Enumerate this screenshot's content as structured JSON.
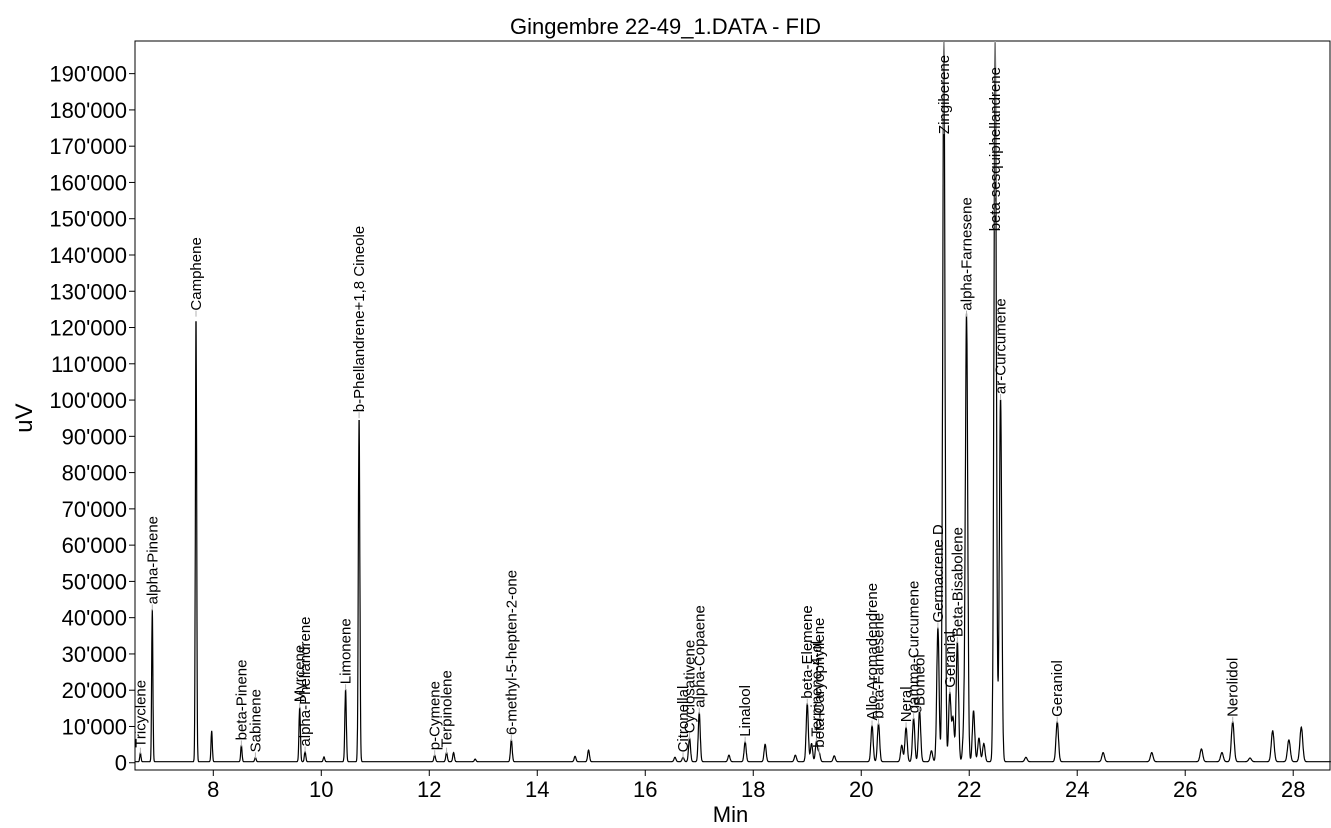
{
  "chart_data": {
    "type": "line",
    "title": "Gingembre 22-49_1.DATA - FID",
    "xlabel": "Min",
    "ylabel": "uV",
    "xlim": [
      6.55,
      28.7
    ],
    "ylim": [
      -2000,
      199000
    ],
    "x_ticks": [
      8,
      10,
      12,
      14,
      16,
      18,
      20,
      22,
      24,
      26,
      28
    ],
    "x_tick_labels": [
      "8",
      "10",
      "12",
      "14",
      "16",
      "18",
      "20",
      "22",
      "24",
      "26",
      "28"
    ],
    "y_ticks": [
      0,
      10000,
      20000,
      30000,
      40000,
      50000,
      60000,
      70000,
      80000,
      90000,
      100000,
      110000,
      120000,
      130000,
      140000,
      150000,
      160000,
      170000,
      180000,
      190000
    ],
    "y_tick_labels": [
      "0",
      "10'000",
      "20'000",
      "30'000",
      "40'000",
      "50'000",
      "60'000",
      "70'000",
      "80'000",
      "90'000",
      "100'000",
      "110'000",
      "120'000",
      "130'000",
      "140'000",
      "150'000",
      "160'000",
      "170'000",
      "180'000",
      "190'000"
    ],
    "grid": false,
    "line_color": "#000000",
    "label_leader_color": "#b0b0b0",
    "peaks": [
      {
        "x": 6.65,
        "y": 2500,
        "name": "Tricyclene"
      },
      {
        "x": 6.87,
        "y": 42000,
        "name": "alpha-Pinene"
      },
      {
        "x": 7.68,
        "y": 123000,
        "name": "Camphene"
      },
      {
        "x": 7.97,
        "y": 8500
      },
      {
        "x": 8.52,
        "y": 4500,
        "name": "beta-Pinene"
      },
      {
        "x": 8.78,
        "y": 1200,
        "name": "Sabinene"
      },
      {
        "x": 9.6,
        "y": 15000,
        "name": "Myrcene"
      },
      {
        "x": 9.7,
        "y": 2800,
        "name": "alpha-Phellandrene"
      },
      {
        "x": 10.05,
        "y": 1300
      },
      {
        "x": 10.45,
        "y": 20000,
        "name": "Limonene"
      },
      {
        "x": 10.7,
        "y": 95000,
        "name": "b-Phellandrene+1,8 Cineole"
      },
      {
        "x": 12.1,
        "y": 1800,
        "name": "p-Cymene"
      },
      {
        "x": 12.32,
        "y": 2500,
        "name": "Terpinolene"
      },
      {
        "x": 12.45,
        "y": 2500
      },
      {
        "x": 12.85,
        "y": 700
      },
      {
        "x": 13.52,
        "y": 6000,
        "name": "6-methyl-5-hepten-2-one"
      },
      {
        "x": 14.7,
        "y": 1500
      },
      {
        "x": 14.95,
        "y": 3200
      },
      {
        "x": 16.55,
        "y": 1200
      },
      {
        "x": 16.7,
        "y": 1200,
        "name": "Citronellal"
      },
      {
        "x": 16.82,
        "y": 6500,
        "name": "Cyclosativene"
      },
      {
        "x": 17.0,
        "y": 13500,
        "name": "alpha-Copaene"
      },
      {
        "x": 17.55,
        "y": 1800
      },
      {
        "x": 17.85,
        "y": 5500,
        "name": "Linalool"
      },
      {
        "x": 18.22,
        "y": 4800
      },
      {
        "x": 18.78,
        "y": 1800
      },
      {
        "x": 19.0,
        "y": 16000,
        "name": "beta-Elemene"
      },
      {
        "x": 19.08,
        "y": 5000
      },
      {
        "x": 19.17,
        "y": 5500,
        "name": "Terpinene-4-ol"
      },
      {
        "x": 19.22,
        "y": 2500,
        "name": "beta-Caryophyllene"
      },
      {
        "x": 19.5,
        "y": 1600
      },
      {
        "x": 20.2,
        "y": 10000,
        "name": "Allo-Aromadendrene"
      },
      {
        "x": 20.32,
        "y": 10500,
        "name": "beta-Farnesene"
      },
      {
        "x": 20.75,
        "y": 4500
      },
      {
        "x": 20.83,
        "y": 9500,
        "name": "Neral"
      },
      {
        "x": 20.97,
        "y": 12000,
        "name": "gamma-Curcumene"
      },
      {
        "x": 21.08,
        "y": 14000,
        "name": "Borneol"
      },
      {
        "x": 21.3,
        "y": 3000
      },
      {
        "x": 21.42,
        "y": 37000,
        "name": "Germacrene D"
      },
      {
        "x": 21.53,
        "y": 199000,
        "name": "Zingiberene"
      },
      {
        "x": 21.64,
        "y": 19000,
        "name": "Geranial"
      },
      {
        "x": 21.7,
        "y": 12000
      },
      {
        "x": 21.78,
        "y": 33000,
        "name": "Beta-Bisabolene"
      },
      {
        "x": 21.9,
        "y": 8000
      },
      {
        "x": 21.95,
        "y": 123000,
        "name": "alpha-Farnesene"
      },
      {
        "x": 22.08,
        "y": 14000
      },
      {
        "x": 22.18,
        "y": 6500
      },
      {
        "x": 22.27,
        "y": 5000
      },
      {
        "x": 22.48,
        "y": 199000,
        "name": "beta-sesquiphellandrene"
      },
      {
        "x": 22.58,
        "y": 100000,
        "name": "ar-Curcumene"
      },
      {
        "x": 23.05,
        "y": 1200
      },
      {
        "x": 23.63,
        "y": 11000,
        "name": "Geraniol"
      },
      {
        "x": 24.48,
        "y": 2500
      },
      {
        "x": 25.38,
        "y": 2500
      },
      {
        "x": 26.3,
        "y": 3500
      },
      {
        "x": 26.68,
        "y": 2500
      },
      {
        "x": 26.88,
        "y": 11000,
        "name": "Nerolidol"
      },
      {
        "x": 27.2,
        "y": 1000
      },
      {
        "x": 27.62,
        "y": 8500
      },
      {
        "x": 27.92,
        "y": 6000
      },
      {
        "x": 28.15,
        "y": 9500
      }
    ]
  }
}
